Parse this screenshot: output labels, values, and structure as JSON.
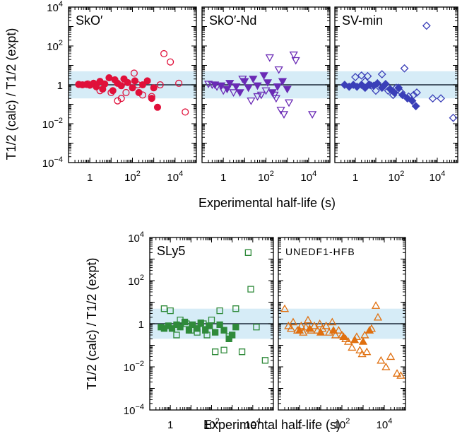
{
  "figure": {
    "ylabel_top": "T1/2 (calc) / T1/2 (expt)",
    "ylabel_bottom": "T1/2 (calc) / T1/2 (expt)",
    "xlabel_top": "Experimental half-life (s)",
    "xlabel_bottom": "Experimental half-life (s)"
  },
  "colors": {
    "SkO'": "#e0103a",
    "SkO'-Nd": "#6a2ab5",
    "SV-min": "#3a3fb8",
    "SLy5": "#2f8a3a",
    "UNEDF1-HFB": "#e07010",
    "band": "#d6ecf7",
    "refline": "#1b2a3a"
  },
  "chart_data": [
    {
      "type": "scatter",
      "panel": "SkO'",
      "label": "SkO′",
      "marker": "circle",
      "xscale": "log",
      "yscale": "log",
      "xlim": [
        0.1,
        100000
      ],
      "ylim": [
        0.0001,
        10000
      ],
      "xticks": [
        "1",
        "10^2",
        "10^4"
      ],
      "yticks": [
        "10^-4",
        "10^-2",
        "1",
        "10^2",
        "10^4"
      ],
      "band": [
        0.2,
        5
      ],
      "series": [
        {
          "fill": "filled",
          "points": [
            [
              0.3,
              1.05
            ],
            [
              0.45,
              1.0
            ],
            [
              0.7,
              1.05
            ],
            [
              1,
              0.95
            ],
            [
              1.5,
              1.2
            ],
            [
              2,
              0.8
            ],
            [
              3,
              1.5
            ],
            [
              4,
              0.6
            ],
            [
              5,
              1.1
            ],
            [
              8,
              2.3
            ],
            [
              12,
              0.5
            ],
            [
              15,
              1.8
            ],
            [
              20,
              1.2
            ],
            [
              30,
              0.9
            ],
            [
              40,
              2.0
            ],
            [
              60,
              1.3
            ],
            [
              100,
              0.7
            ],
            [
              130,
              1.6
            ],
            [
              200,
              0.4
            ],
            [
              300,
              1.0
            ],
            [
              500,
              1.6
            ],
            [
              800,
              0.2
            ],
            [
              1000,
              0.7
            ],
            [
              1500,
              0.07
            ]
          ]
        },
        {
          "fill": "open",
          "points": [
            [
              0.8,
              1.1
            ],
            [
              3,
              0.5
            ],
            [
              10,
              0.4
            ],
            [
              20,
              0.15
            ],
            [
              30,
              0.2
            ],
            [
              50,
              0.4
            ],
            [
              120,
              4
            ],
            [
              180,
              1.0
            ],
            [
              300,
              0.3
            ],
            [
              800,
              0.25
            ],
            [
              2000,
              1.0
            ],
            [
              3000,
              40
            ],
            [
              6000,
              15
            ],
            [
              15000,
              1.2
            ],
            [
              30000,
              0.04
            ]
          ]
        }
      ]
    },
    {
      "type": "scatter",
      "panel": "SkO'-Nd",
      "label": "SkO′-Nd",
      "marker": "triangle-down",
      "xscale": "log",
      "yscale": "log",
      "xlim": [
        0.1,
        100000
      ],
      "ylim": [
        0.0001,
        10000
      ],
      "xticks": [
        "1",
        "10^2",
        "10^4"
      ],
      "yticks": [
        "10^-4",
        "10^-2",
        "1",
        "10^2",
        "10^4"
      ],
      "band": [
        0.2,
        5
      ],
      "series": [
        {
          "fill": "filled",
          "points": [
            [
              0.4,
              1.0
            ],
            [
              0.8,
              0.9
            ],
            [
              1.5,
              0.6
            ],
            [
              2,
              1.2
            ],
            [
              4,
              0.8
            ],
            [
              6,
              0.4
            ],
            [
              10,
              1.5
            ],
            [
              15,
              0.7
            ],
            [
              25,
              2.0
            ],
            [
              40,
              0.9
            ],
            [
              80,
              3.0
            ],
            [
              120,
              1.3
            ],
            [
              200,
              0.4
            ],
            [
              350,
              0.8
            ],
            [
              600,
              1.5
            ],
            [
              1000,
              0.6
            ]
          ]
        },
        {
          "fill": "open",
          "points": [
            [
              0.2,
              1.1
            ],
            [
              0.3,
              1.0
            ],
            [
              0.5,
              0.8
            ],
            [
              1,
              0.5
            ],
            [
              3,
              0.4
            ],
            [
              8,
              2.0
            ],
            [
              20,
              0.15
            ],
            [
              40,
              0.25
            ],
            [
              60,
              0.3
            ],
            [
              100,
              0.5
            ],
            [
              150,
              25
            ],
            [
              250,
              0.3
            ],
            [
              300,
              0.2
            ],
            [
              400,
              6
            ],
            [
              500,
              0.05
            ],
            [
              700,
              0.03
            ],
            [
              1200,
              0.12
            ],
            [
              2000,
              35
            ],
            [
              2500,
              18
            ],
            [
              15000,
              0.03
            ]
          ]
        }
      ]
    },
    {
      "type": "scatter",
      "panel": "SV-min",
      "label": "SV-min",
      "marker": "diamond",
      "xscale": "log",
      "yscale": "log",
      "xlim": [
        0.1,
        100000
      ],
      "ylim": [
        0.0001,
        10000
      ],
      "xticks": [
        "1",
        "10^2",
        "10^4"
      ],
      "yticks": [
        "10^-4",
        "10^-2",
        "1",
        "10^2",
        "10^4"
      ],
      "band": [
        0.2,
        5
      ],
      "series": [
        {
          "fill": "filled",
          "points": [
            [
              0.3,
              1.0
            ],
            [
              0.5,
              0.8
            ],
            [
              0.8,
              1.0
            ],
            [
              1.2,
              0.8
            ],
            [
              2,
              1.0
            ],
            [
              3,
              0.7
            ],
            [
              5,
              1.0
            ],
            [
              8,
              0.9
            ],
            [
              12,
              1.2
            ],
            [
              20,
              0.7
            ],
            [
              30,
              1.1
            ],
            [
              50,
              0.6
            ],
            [
              80,
              0.4
            ],
            [
              130,
              0.7
            ],
            [
              200,
              0.3
            ],
            [
              350,
              0.2
            ],
            [
              600,
              0.15
            ],
            [
              900,
              0.08
            ]
          ]
        },
        {
          "fill": "open",
          "points": [
            [
              1,
              2.5
            ],
            [
              2,
              3
            ],
            [
              3,
              1.5
            ],
            [
              4,
              2.8
            ],
            [
              6,
              0.9
            ],
            [
              10,
              0.5
            ],
            [
              20,
              3.5
            ],
            [
              40,
              0.5
            ],
            [
              70,
              0.3
            ],
            [
              100,
              0.7
            ],
            [
              180,
              0.4
            ],
            [
              250,
              7
            ],
            [
              400,
              0.25
            ],
            [
              700,
              0.3
            ],
            [
              1000,
              0.4
            ],
            [
              3000,
              1100
            ],
            [
              6000,
              0.2
            ],
            [
              15000,
              0.2
            ],
            [
              60000,
              0.02
            ]
          ]
        }
      ]
    },
    {
      "type": "scatter",
      "panel": "SLy5",
      "label": "SLy5",
      "marker": "square",
      "xscale": "log",
      "yscale": "log",
      "xlim": [
        0.1,
        100000
      ],
      "ylim": [
        0.0001,
        10000
      ],
      "xticks": [
        "1",
        "10^2",
        "10^4"
      ],
      "yticks": [
        "10^-4",
        "10^-2",
        "1",
        "10^2",
        "10^4"
      ],
      "band": [
        0.2,
        5
      ],
      "series": [
        {
          "fill": "filled",
          "points": [
            [
              0.35,
              0.7
            ],
            [
              0.5,
              0.6
            ],
            [
              0.8,
              0.8
            ],
            [
              1.2,
              0.6
            ],
            [
              2,
              0.9
            ],
            [
              3,
              0.7
            ],
            [
              5,
              1.2
            ],
            [
              8,
              0.5
            ],
            [
              12,
              0.9
            ],
            [
              20,
              0.6
            ],
            [
              30,
              1.1
            ],
            [
              50,
              0.5
            ],
            [
              80,
              0.8
            ],
            [
              150,
              0.4
            ],
            [
              250,
              0.9
            ],
            [
              400,
              0.5
            ],
            [
              700,
              0.2
            ],
            [
              1000,
              0.3
            ],
            [
              1500,
              0.7
            ]
          ]
        },
        {
          "fill": "open",
          "points": [
            [
              0.5,
              5
            ],
            [
              1,
              4
            ],
            [
              2,
              0.3
            ],
            [
              3,
              1.5
            ],
            [
              6,
              1.0
            ],
            [
              10,
              0.5
            ],
            [
              20,
              0.4
            ],
            [
              40,
              1.0
            ],
            [
              60,
              0.3
            ],
            [
              100,
              1.5
            ],
            [
              150,
              0.05
            ],
            [
              250,
              4
            ],
            [
              400,
              0.06
            ],
            [
              700,
              0.25
            ],
            [
              1500,
              5
            ],
            [
              3000,
              0.05
            ],
            [
              6000,
              2000
            ],
            [
              8000,
              40
            ],
            [
              15000,
              0.7
            ],
            [
              40000,
              0.02
            ]
          ]
        }
      ]
    },
    {
      "type": "scatter",
      "panel": "UNEDF1-HFB",
      "label": "UNEDF1-HFB",
      "marker": "triangle-up",
      "xscale": "log",
      "yscale": "log",
      "xlim": [
        0.1,
        100000
      ],
      "ylim": [
        0.0001,
        10000
      ],
      "xticks": [
        "1",
        "10^2",
        "10^4"
      ],
      "yticks": [
        "10^-4",
        "10^-2",
        "1",
        "10^2",
        "10^4"
      ],
      "band": [
        0.2,
        5
      ],
      "series": [
        {
          "fill": "filled",
          "points": [
            [
              1,
              0.5
            ],
            [
              3,
              0.6
            ],
            [
              10,
              0.4
            ],
            [
              40,
              0.5
            ],
            [
              120,
              0.25
            ],
            [
              400,
              0.18
            ],
            [
              1000,
              0.15
            ],
            [
              2000,
              0.5
            ]
          ]
        },
        {
          "fill": "open",
          "points": [
            [
              0.2,
              5
            ],
            [
              0.3,
              0.8
            ],
            [
              0.4,
              0.6
            ],
            [
              0.5,
              1.2
            ],
            [
              0.8,
              0.5
            ],
            [
              1.2,
              0.8
            ],
            [
              1.5,
              0.4
            ],
            [
              2,
              0.7
            ],
            [
              2.5,
              1.5
            ],
            [
              3.5,
              0.5
            ],
            [
              5,
              0.8
            ],
            [
              7,
              0.5
            ],
            [
              9,
              1.0
            ],
            [
              12,
              0.6
            ],
            [
              18,
              0.8
            ],
            [
              25,
              0.4
            ],
            [
              35,
              1.2
            ],
            [
              50,
              0.3
            ],
            [
              70,
              0.5
            ],
            [
              100,
              0.3
            ],
            [
              150,
              0.2
            ],
            [
              200,
              0.15
            ],
            [
              300,
              0.08
            ],
            [
              500,
              0.25
            ],
            [
              700,
              0.06
            ],
            [
              900,
              0.04
            ],
            [
              1200,
              0.3
            ],
            [
              1500,
              0.05
            ],
            [
              2500,
              0.6
            ],
            [
              4000,
              7
            ],
            [
              5000,
              2
            ],
            [
              7000,
              0.02
            ],
            [
              12000,
              0.01
            ],
            [
              20000,
              0.03
            ],
            [
              40000,
              0.005
            ],
            [
              60000,
              0.004
            ]
          ]
        }
      ]
    }
  ]
}
